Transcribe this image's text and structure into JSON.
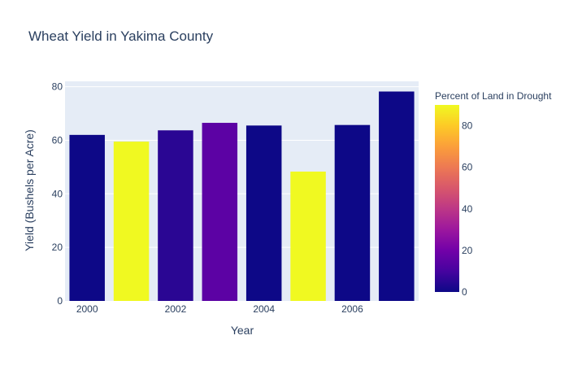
{
  "chart_data": {
    "type": "bar",
    "title": "Wheat Yield in Yakima County",
    "xlabel": "Year",
    "ylabel": "Yield (Bushels per Acre)",
    "x": [
      2000,
      2001,
      2002,
      2003,
      2004,
      2005,
      2006,
      2007
    ],
    "values": [
      62,
      59.5,
      63.7,
      66.5,
      65.5,
      48.3,
      65.7,
      78.2
    ],
    "drought_percent": [
      0,
      90,
      5,
      15,
      0,
      90,
      0,
      0
    ],
    "x_tick_values": [
      2000,
      2002,
      2004,
      2006
    ],
    "x_tick_labels": [
      "2000",
      "2002",
      "2004",
      "2006"
    ],
    "ylim": [
      0,
      82
    ],
    "y_ticks": [
      0,
      20,
      40,
      60,
      80
    ],
    "colorbar": {
      "title": "Percent of Land in Drought",
      "range": [
        0,
        90
      ],
      "ticks": [
        0,
        20,
        40,
        60,
        80
      ]
    },
    "grid": true,
    "colors": {
      "plot_bg": "#e5ecf6",
      "text": "#2a3f5f",
      "grid": "#ffffff"
    },
    "colorscale": [
      "#0d0887",
      "#46039f",
      "#7201a8",
      "#9c179e",
      "#bd3786",
      "#d8576b",
      "#ed7953",
      "#fb9f3a",
      "#fdca26",
      "#f0f921"
    ]
  }
}
